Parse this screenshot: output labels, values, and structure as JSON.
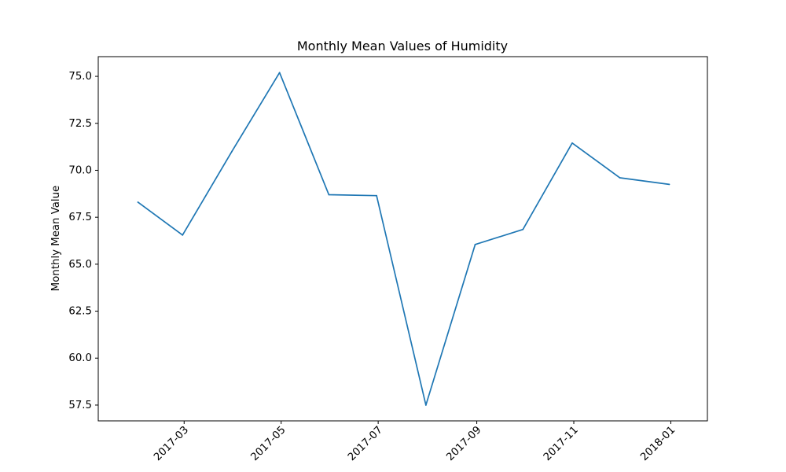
{
  "chart_data": {
    "type": "line",
    "title": "Monthly Mean Values of Humidity",
    "xlabel": "",
    "ylabel": "Monthly Mean Value",
    "x": [
      "2017-01-31",
      "2017-02-28",
      "2017-03-31",
      "2017-04-30",
      "2017-05-31",
      "2017-06-30",
      "2017-07-31",
      "2017-08-31",
      "2017-09-30",
      "2017-10-31",
      "2017-11-30",
      "2017-12-31"
    ],
    "series": [
      {
        "values": [
          68.3,
          66.55,
          71.0,
          75.2,
          68.7,
          68.65,
          57.5,
          66.05,
          66.85,
          71.45,
          69.6,
          69.25
        ]
      }
    ],
    "x_ticks": [
      {
        "date": "2017-03-01",
        "label": "2017-03"
      },
      {
        "date": "2017-05-01",
        "label": "2017-05"
      },
      {
        "date": "2017-07-01",
        "label": "2017-07"
      },
      {
        "date": "2017-09-01",
        "label": "2017-09"
      },
      {
        "date": "2017-11-01",
        "label": "2017-11"
      },
      {
        "date": "2018-01-01",
        "label": "2018-01"
      }
    ],
    "y_ticks": [
      57.5,
      60.0,
      62.5,
      65.0,
      67.5,
      70.0,
      72.5,
      75.0
    ],
    "xlim": [
      "2017-01-06",
      "2018-01-24"
    ],
    "ylim": [
      56.66,
      76.05
    ],
    "line_color": "#1f77b4",
    "grid": false,
    "legend": false
  }
}
